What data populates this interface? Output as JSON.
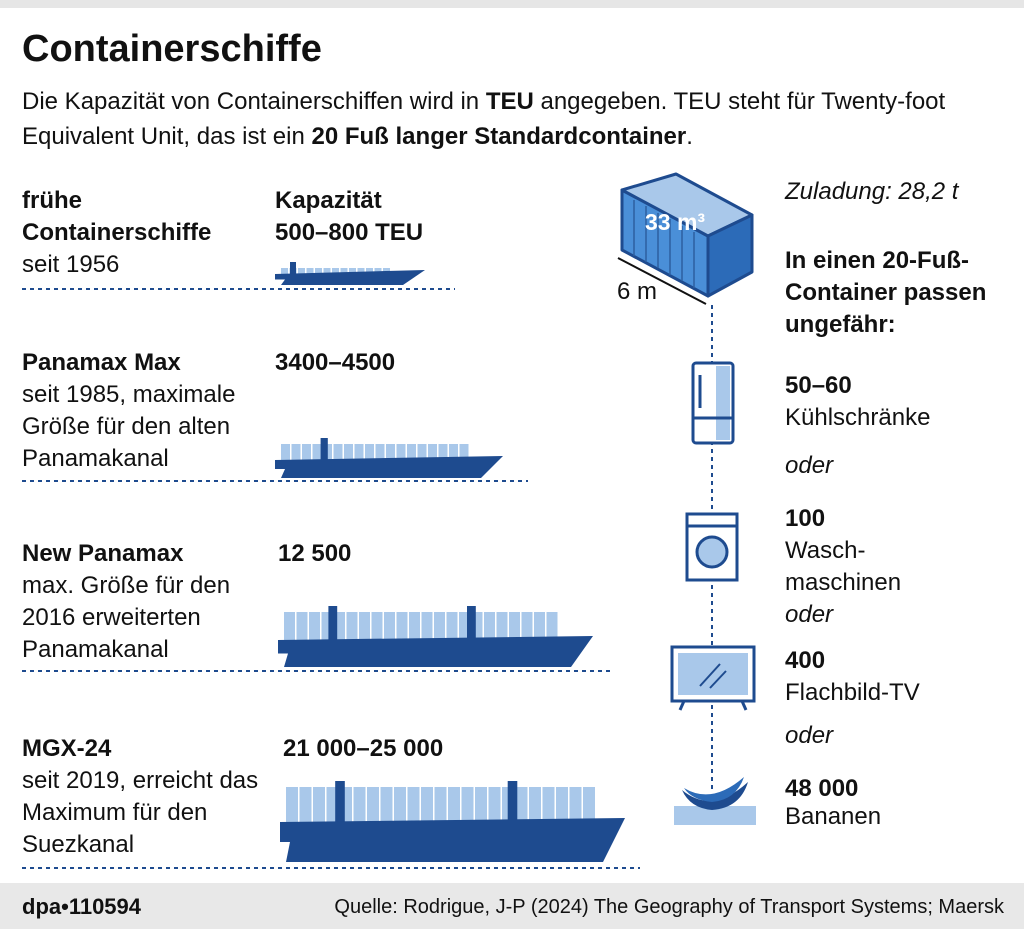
{
  "header": {
    "title": "Containerschiffe",
    "subtitle_parts": [
      "Die Kapazität von Containerschiffen wird in ",
      "TEU",
      " angegeben. TEU steht für Twenty-foot Equivalent Unit, das ist ein ",
      "20 Fuß langer Standardcontainer",
      "."
    ]
  },
  "capacity_heading": "Kapazität",
  "ships": [
    {
      "name": "frühe Containerschiffe",
      "description": "seit 1956",
      "capacity": "500–800 TEU"
    },
    {
      "name": "Panamax Max",
      "description": "seit 1985, maximale Größe für den alten Panamakanal",
      "capacity": "3400–4500"
    },
    {
      "name": "New Panamax",
      "description": "max. Größe für den 2016 erweiter­ten Panamakanal",
      "capacity": "12 500"
    },
    {
      "name": "MGX-24",
      "description": "seit 2019, erreicht das Maximum für den Suezkanal",
      "capacity": "21 000–25 000"
    }
  ],
  "container": {
    "volume": "33 m³",
    "length": "6 m",
    "payload": "Zuladung: 28,2 t",
    "intro": "In einen 20-Fuß-Container passen ungefähr:"
  },
  "items": [
    {
      "count": "50–60",
      "label": "Kühlschränke"
    },
    {
      "count": "100",
      "label": "Wasch­maschinen"
    },
    {
      "count": "400",
      "label": "Flachbild-TV"
    },
    {
      "count": "48 000",
      "label": "Bananen"
    }
  ],
  "separator": "oder",
  "footer": {
    "agency": "dpa•110594",
    "source": "Quelle: Rodrigue, J-P (2024) The Geography of Transport Systems; Maersk"
  }
}
